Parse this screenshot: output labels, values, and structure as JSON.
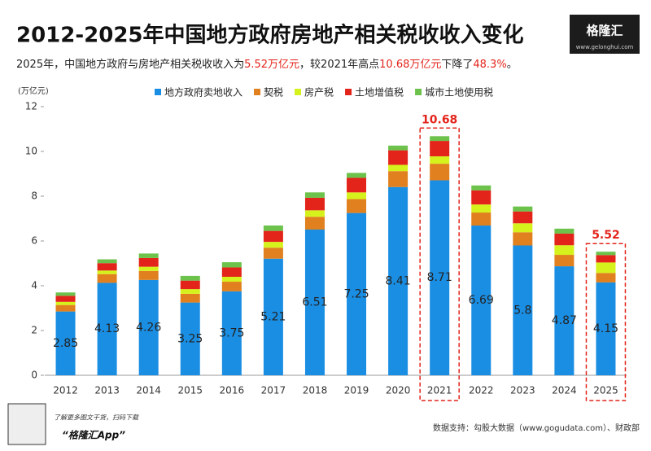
{
  "chart_data": {
    "type": "stacked-bar",
    "title": "2012-2025年中国地方政府房地产相关税收收入变化",
    "subtitle_parts": [
      {
        "text": "2025年，中国地方政府与房地产相关税收收入为",
        "highlight": false
      },
      {
        "text": "5.52万亿元",
        "highlight": true
      },
      {
        "text": "，较2021年高点",
        "highlight": false
      },
      {
        "text": "10.68万亿元",
        "highlight": true
      },
      {
        "text": "下降了",
        "highlight": false
      },
      {
        "text": "48.3%",
        "highlight": true
      },
      {
        "text": "。",
        "highlight": false
      }
    ],
    "y_label": "(万亿元)",
    "categories": [
      "2012",
      "2013",
      "2014",
      "2015",
      "2016",
      "2017",
      "2018",
      "2019",
      "2020",
      "2021",
      "2022",
      "2023",
      "2024",
      "2025"
    ],
    "series": [
      {
        "name": "地方政府卖地收入",
        "color": "#1a8ee3",
        "show_values": true,
        "values": [
          2.85,
          4.13,
          4.26,
          3.25,
          3.75,
          5.21,
          6.51,
          7.25,
          8.41,
          8.71,
          6.69,
          5.8,
          4.87,
          4.15
        ]
      },
      {
        "name": "契税",
        "color": "#e0801e",
        "values": [
          0.29,
          0.39,
          0.4,
          0.39,
          0.43,
          0.49,
          0.57,
          0.62,
          0.71,
          0.74,
          0.58,
          0.59,
          0.51,
          0.42
        ]
      },
      {
        "name": "房产税",
        "color": "#d6f21c",
        "values": [
          0.14,
          0.16,
          0.19,
          0.21,
          0.22,
          0.26,
          0.29,
          0.3,
          0.28,
          0.33,
          0.36,
          0.4,
          0.43,
          0.47
        ]
      },
      {
        "name": "土地增值税",
        "color": "#e3241b",
        "values": [
          0.27,
          0.33,
          0.39,
          0.38,
          0.42,
          0.49,
          0.56,
          0.65,
          0.65,
          0.69,
          0.63,
          0.53,
          0.52,
          0.33
        ]
      },
      {
        "name": "城市土地使用税",
        "color": "#6cc24a",
        "values": [
          0.15,
          0.17,
          0.2,
          0.21,
          0.23,
          0.24,
          0.24,
          0.22,
          0.21,
          0.21,
          0.22,
          0.22,
          0.22,
          0.15
        ]
      }
    ],
    "annotations": [
      {
        "x": "2021",
        "label": "10.68"
      },
      {
        "x": "2025",
        "label": "5.52"
      }
    ],
    "ylim": [
      0,
      12
    ],
    "yticks": [
      0,
      2,
      4,
      6,
      8,
      10,
      12
    ],
    "source": "数据支持：勾股大数据（www.gogudata.com）、财政部"
  },
  "branding": {
    "logo": "格隆汇",
    "logo_url": "www.gelonghui.com",
    "qr_caption": "了解更多图文干货，扫码下载",
    "app": "“格隆汇App”"
  }
}
